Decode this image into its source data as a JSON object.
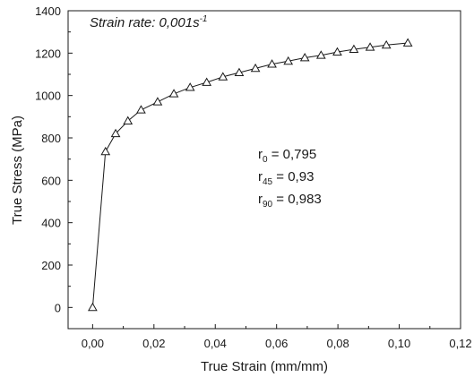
{
  "chart_data": {
    "type": "line",
    "xlabel": "True Strain (mm/mm)",
    "ylabel": "True Stress (MPa)",
    "xlim": [
      -0.008,
      0.12
    ],
    "ylim": [
      -100,
      1400
    ],
    "x_ticks": [
      0.0,
      0.02,
      0.04,
      0.06,
      0.08,
      0.1,
      0.12
    ],
    "x_tick_labels": [
      "0,00",
      "0,02",
      "0,04",
      "0,06",
      "0,08",
      "0,10",
      "0,12"
    ],
    "y_ticks": [
      0,
      200,
      400,
      600,
      800,
      1000,
      1200,
      1400
    ],
    "y_tick_labels": [
      "0",
      "200",
      "400",
      "600",
      "800",
      "1000",
      "1200",
      "1400"
    ],
    "marker": "open-triangle",
    "series": [
      {
        "x": [
          0.0,
          0.0042,
          0.0075,
          0.0115,
          0.0158,
          0.0212,
          0.0265,
          0.0318,
          0.0372,
          0.0425,
          0.0478,
          0.0531,
          0.0585,
          0.0638,
          0.0692,
          0.0745,
          0.0798,
          0.0852,
          0.0905,
          0.0958,
          0.1028
        ],
        "y": [
          0,
          735,
          820,
          880,
          932,
          970,
          1008,
          1038,
          1062,
          1088,
          1108,
          1128,
          1148,
          1162,
          1178,
          1190,
          1205,
          1218,
          1228,
          1238,
          1248
        ]
      }
    ],
    "annotations": {
      "strain_rate_text": "Strain rate: 0,001s",
      "strain_rate_sup": "-1",
      "r_values": [
        {
          "base": "r",
          "sub": "0",
          "value": " = 0,795"
        },
        {
          "base": "r",
          "sub": "45",
          "value": " = 0,93"
        },
        {
          "base": "r",
          "sub": "90",
          "value": " = 0,983"
        }
      ]
    },
    "grid": false,
    "legend": "none"
  }
}
